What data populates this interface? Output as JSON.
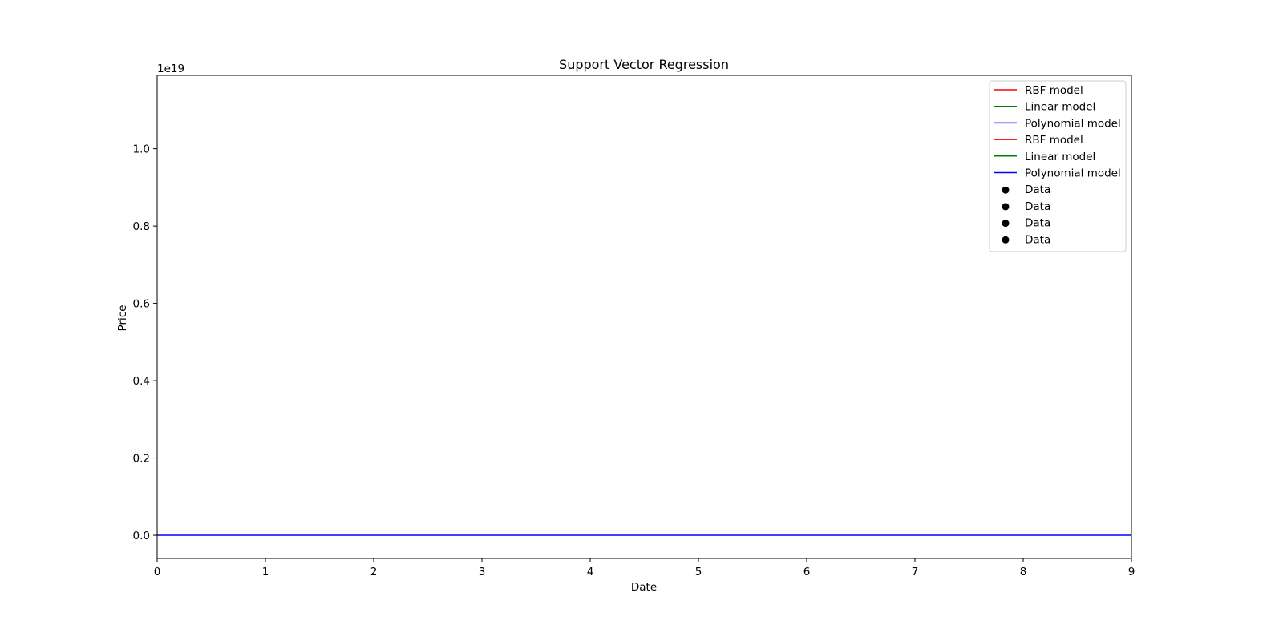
{
  "chart_data": {
    "type": "line",
    "title": "Support Vector Regression",
    "xlabel": "Date",
    "ylabel": "Price",
    "xlim": [
      0,
      9
    ],
    "ylim": [
      -0.06,
      1.19
    ],
    "y_offset_label": "1e19",
    "x_ticks": [
      0,
      1,
      2,
      3,
      4,
      5,
      6,
      7,
      8,
      9
    ],
    "x_tick_labels": [
      "0",
      "1",
      "2",
      "3",
      "4",
      "5",
      "6",
      "7",
      "8",
      "9"
    ],
    "y_ticks": [
      0.0,
      0.2,
      0.4,
      0.6,
      0.8,
      1.0
    ],
    "y_tick_labels": [
      "0.0",
      "0.2",
      "0.4",
      "0.6",
      "0.8",
      "1.0"
    ],
    "grid": false,
    "legend_position": "top-right",
    "legend": [
      {
        "label": "RBF model",
        "marker": "line",
        "color": "#ff0000"
      },
      {
        "label": "Linear model",
        "marker": "line",
        "color": "#008000"
      },
      {
        "label": "Polynomial model",
        "marker": "line",
        "color": "#0000ff"
      },
      {
        "label": "RBF model",
        "marker": "line",
        "color": "#ff0000"
      },
      {
        "label": "Linear model",
        "marker": "line",
        "color": "#008000"
      },
      {
        "label": "Polynomial model",
        "marker": "line",
        "color": "#0000ff"
      },
      {
        "label": "Data",
        "marker": "dot",
        "color": "#000000"
      },
      {
        "label": "Data",
        "marker": "dot",
        "color": "#000000"
      },
      {
        "label": "Data",
        "marker": "dot",
        "color": "#000000"
      },
      {
        "label": "Data",
        "marker": "dot",
        "color": "#000000"
      }
    ],
    "series": [
      {
        "name": "Polynomial model",
        "color": "#0000ff",
        "x": [
          0,
          9
        ],
        "y": [
          0,
          0
        ]
      }
    ]
  }
}
